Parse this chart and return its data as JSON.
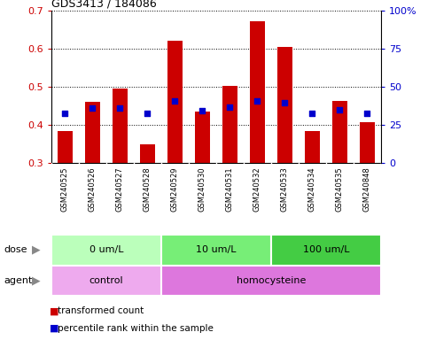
{
  "title": "GDS3413 / 184086",
  "samples": [
    "GSM240525",
    "GSM240526",
    "GSM240527",
    "GSM240528",
    "GSM240529",
    "GSM240530",
    "GSM240531",
    "GSM240532",
    "GSM240533",
    "GSM240534",
    "GSM240535",
    "GSM240848"
  ],
  "transformed_count": [
    0.383,
    0.46,
    0.495,
    0.35,
    0.62,
    0.435,
    0.503,
    0.67,
    0.605,
    0.383,
    0.462,
    0.408
  ],
  "percentile_rank": [
    0.43,
    0.445,
    0.445,
    0.43,
    0.462,
    0.438,
    0.447,
    0.462,
    0.458,
    0.43,
    0.44,
    0.43
  ],
  "bar_color": "#cc0000",
  "dot_color": "#0000cc",
  "ymin": 0.3,
  "ymax": 0.7,
  "yticks": [
    0.3,
    0.4,
    0.5,
    0.6,
    0.7
  ],
  "y2ticks": [
    0,
    25,
    50,
    75,
    100
  ],
  "y2ticklabels": [
    "0",
    "25",
    "50",
    "75",
    "100%"
  ],
  "dose_groups": [
    {
      "label": "0 um/L",
      "start": 0,
      "end": 4,
      "color": "#bbffbb"
    },
    {
      "label": "10 um/L",
      "start": 4,
      "end": 8,
      "color": "#77ee77"
    },
    {
      "label": "100 um/L",
      "start": 8,
      "end": 12,
      "color": "#44cc44"
    }
  ],
  "agent_groups": [
    {
      "label": "control",
      "start": 0,
      "end": 4,
      "color": "#eeaaee"
    },
    {
      "label": "homocysteine",
      "start": 4,
      "end": 12,
      "color": "#dd77dd"
    }
  ],
  "dose_label": "dose",
  "agent_label": "agent",
  "legend_items": [
    {
      "color": "#cc0000",
      "label": "transformed count"
    },
    {
      "color": "#0000cc",
      "label": "percentile rank within the sample"
    }
  ],
  "bg_color": "#ffffff",
  "plot_bg_color": "#ffffff",
  "label_color_left": "#cc0000",
  "label_color_right": "#0000cc",
  "sample_bg_color": "#cccccc",
  "fig_width": 4.83,
  "fig_height": 3.84,
  "dpi": 100
}
